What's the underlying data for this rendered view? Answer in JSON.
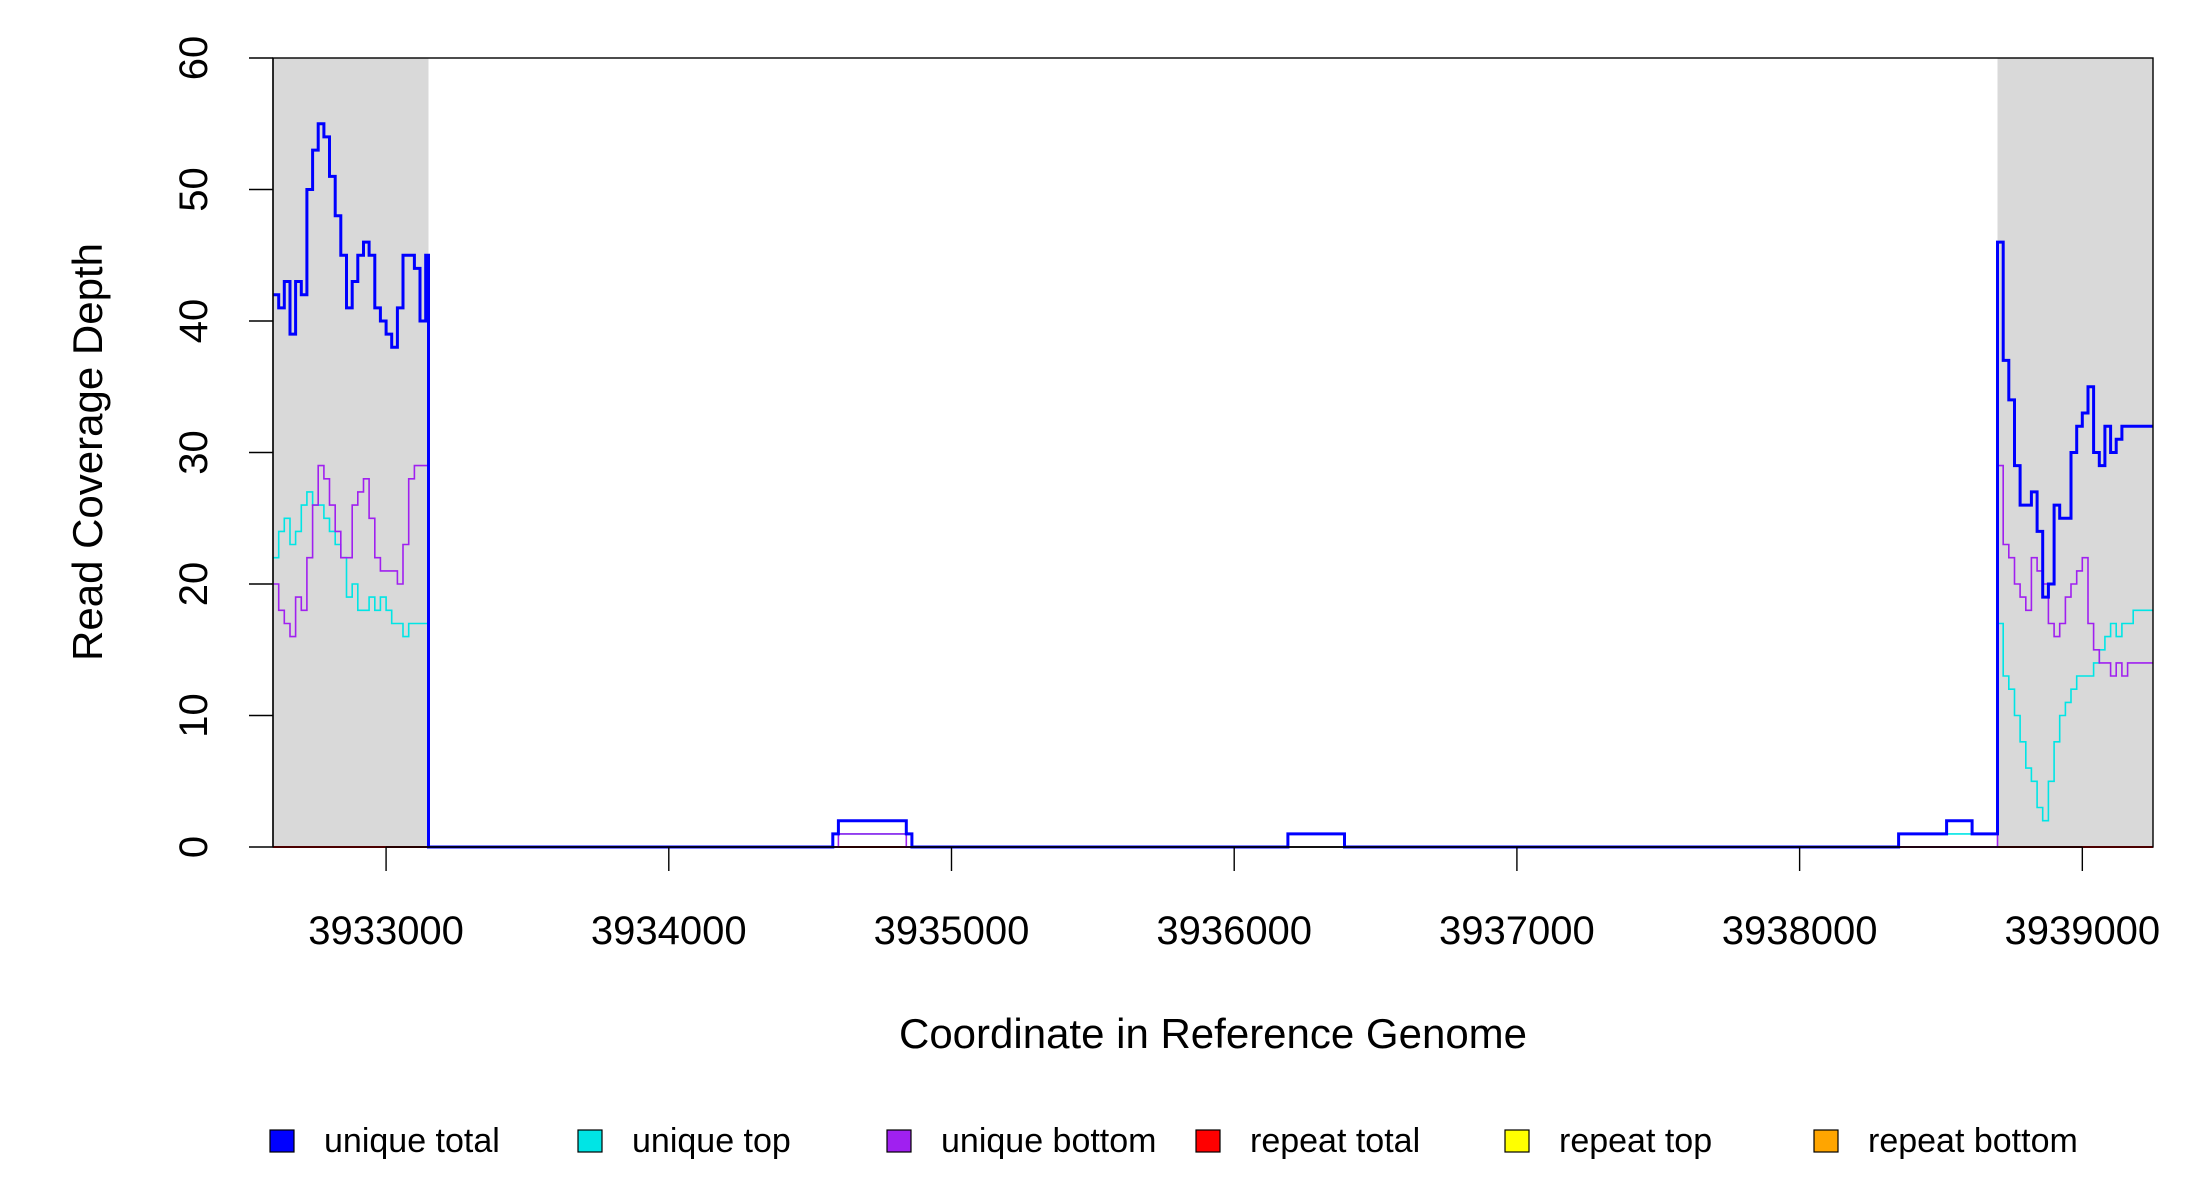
{
  "chart_data": {
    "type": "line",
    "title": "",
    "xlabel": "Coordinate in Reference Genome",
    "ylabel": "Read Coverage Depth",
    "xlim": [
      3932600,
      3939250
    ],
    "ylim": [
      0,
      60
    ],
    "x_ticks": [
      3933000,
      3934000,
      3935000,
      3936000,
      3937000,
      3938000,
      3939000
    ],
    "x_tick_labels": [
      "3933000",
      "3934000",
      "3935000",
      "3936000",
      "3937000",
      "3938000",
      "3939000"
    ],
    "y_ticks": [
      0,
      10,
      20,
      30,
      40,
      50,
      60
    ],
    "y_tick_labels": [
      "0",
      "10",
      "20",
      "30",
      "40",
      "50",
      "60"
    ],
    "grid": false,
    "legend_position": "bottom",
    "shaded_regions": [
      {
        "x_start": 3932600,
        "x_end": 3933150,
        "color": "#d9d9d9"
      },
      {
        "x_start": 3938700,
        "x_end": 3939250,
        "color": "#d9d9d9"
      }
    ],
    "series": [
      {
        "name": "unique total",
        "color": "#0000ff",
        "x": [
          3932600,
          3932620,
          3932640,
          3932660,
          3932680,
          3932700,
          3932720,
          3932740,
          3932760,
          3932780,
          3932800,
          3932820,
          3932840,
          3932860,
          3932880,
          3932900,
          3932920,
          3932940,
          3932960,
          3932980,
          3933000,
          3933020,
          3933040,
          3933060,
          3933080,
          3933100,
          3933120,
          3933140,
          3933150,
          3933160,
          3934580,
          3934600,
          3934840,
          3934860,
          3936190,
          3936390,
          3938350,
          3938520,
          3938610,
          3938700,
          3938720,
          3938740,
          3938760,
          3938780,
          3938800,
          3938820,
          3938840,
          3938860,
          3938880,
          3938900,
          3938920,
          3938940,
          3938960,
          3938980,
          3939000,
          3939020,
          3939040,
          3939060,
          3939080,
          3939100,
          3939120,
          3939140,
          3939160,
          3939180,
          3939200,
          3939220,
          3939240
        ],
        "y": [
          42,
          41,
          43,
          39,
          43,
          42,
          50,
          53,
          55,
          54,
          51,
          48,
          45,
          41,
          43,
          45,
          46,
          45,
          41,
          40,
          39,
          38,
          41,
          45,
          45,
          44,
          40,
          45,
          0,
          0,
          1,
          2,
          1,
          0,
          1,
          0,
          1,
          2,
          1,
          46,
          37,
          34,
          29,
          26,
          26,
          27,
          24,
          19,
          20,
          26,
          25,
          25,
          30,
          32,
          33,
          35,
          30,
          29,
          32,
          30,
          31,
          32,
          32,
          32,
          32,
          32,
          32
        ]
      },
      {
        "name": "unique top",
        "color": "#00e5e5",
        "x": [
          3932600,
          3932620,
          3932640,
          3932660,
          3932680,
          3932700,
          3932720,
          3932740,
          3932760,
          3932780,
          3932800,
          3932820,
          3932840,
          3932860,
          3932880,
          3932900,
          3932920,
          3932940,
          3932960,
          3932980,
          3933000,
          3933020,
          3933040,
          3933060,
          3933080,
          3933100,
          3933120,
          3933140,
          3933150,
          3934580,
          3934600,
          3934840,
          3934860,
          3938350,
          3938700,
          3938720,
          3938740,
          3938760,
          3938780,
          3938800,
          3938820,
          3938840,
          3938860,
          3938880,
          3938900,
          3938920,
          3938940,
          3938960,
          3938980,
          3939000,
          3939020,
          3939040,
          3939060,
          3939080,
          3939100,
          3939120,
          3939140,
          3939160,
          3939180,
          3939200,
          3939220,
          3939240
        ],
        "y": [
          22,
          24,
          25,
          23,
          24,
          26,
          27,
          26,
          26,
          25,
          24,
          23,
          22,
          19,
          20,
          18,
          18,
          19,
          18,
          19,
          18,
          17,
          17,
          16,
          17,
          17,
          17,
          17,
          0,
          1,
          1,
          1,
          0,
          1,
          17,
          13,
          12,
          10,
          8,
          6,
          5,
          3,
          2,
          5,
          8,
          10,
          11,
          12,
          13,
          13,
          13,
          14,
          15,
          16,
          17,
          16,
          17,
          17,
          18,
          18,
          18,
          18
        ]
      },
      {
        "name": "unique bottom",
        "color": "#a020f0",
        "x": [
          3932600,
          3932620,
          3932640,
          3932660,
          3932680,
          3932700,
          3932720,
          3932740,
          3932760,
          3932780,
          3932800,
          3932820,
          3932840,
          3932860,
          3932880,
          3932900,
          3932920,
          3932940,
          3932960,
          3932980,
          3933000,
          3933020,
          3933040,
          3933060,
          3933080,
          3933100,
          3933120,
          3933140,
          3933150,
          3934580,
          3934600,
          3934840,
          3934860,
          3936190,
          3936390,
          3938350,
          3938700,
          3938720,
          3938740,
          3938760,
          3938780,
          3938800,
          3938820,
          3938840,
          3938860,
          3938880,
          3938900,
          3938920,
          3938940,
          3938960,
          3938980,
          3939000,
          3939020,
          3939040,
          3939060,
          3939080,
          3939100,
          3939120,
          3939140,
          3939160,
          3939180,
          3939200,
          3939220,
          3939240
        ],
        "y": [
          20,
          18,
          17,
          16,
          19,
          18,
          22,
          26,
          29,
          28,
          26,
          24,
          22,
          22,
          26,
          27,
          28,
          25,
          22,
          21,
          21,
          21,
          20,
          23,
          28,
          29,
          29,
          29,
          0,
          0,
          1,
          0,
          0,
          1,
          0,
          0,
          29,
          23,
          22,
          20,
          19,
          18,
          22,
          21,
          20,
          17,
          16,
          17,
          19,
          20,
          21,
          22,
          17,
          15,
          14,
          14,
          13,
          14,
          13,
          14,
          14,
          14,
          14,
          14
        ]
      },
      {
        "name": "repeat total",
        "color": "#ff0000",
        "x": [
          3932600,
          3939250
        ],
        "y": [
          0,
          0
        ]
      },
      {
        "name": "repeat top",
        "color": "#ffff00",
        "x": [
          3932600,
          3939250
        ],
        "y": [
          0,
          0
        ]
      },
      {
        "name": "repeat bottom",
        "color": "#ffa500",
        "x": [
          3932600,
          3939250
        ],
        "y": [
          0,
          0
        ]
      }
    ]
  }
}
